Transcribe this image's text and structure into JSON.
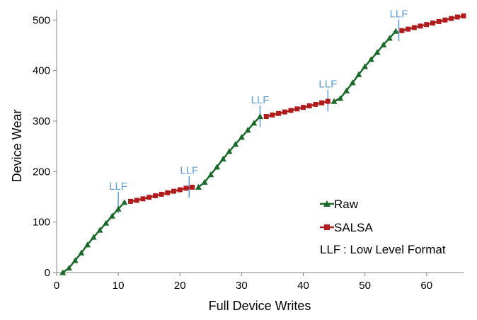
{
  "chart_data": {
    "type": "line",
    "xlabel": "Full Device Writes",
    "ylabel": "Device Wear",
    "xlim": [
      0,
      66
    ],
    "ylim": [
      0,
      520
    ],
    "x_ticks": [
      0,
      10,
      20,
      30,
      40,
      50,
      60
    ],
    "y_ticks": [
      0,
      100,
      200,
      300,
      400,
      500
    ],
    "grid": false,
    "legend_placement": "bottom-right",
    "colors": {
      "raw": "#1a6b2a",
      "salsa": "#b01c1c",
      "llf": "#5b9bd5",
      "axis": "#808080"
    },
    "series": [
      {
        "name": "Raw",
        "marker": "triangle",
        "segments": [
          {
            "x": [
              1,
              2,
              3,
              4,
              5,
              6,
              7,
              8,
              9,
              10,
              11
            ],
            "y": [
              0,
              9,
              24,
              39,
              55,
              70,
              84,
              98,
              112,
              126,
              139
            ]
          },
          {
            "x": [
              23,
              24,
              25,
              26,
              27,
              28,
              29,
              30,
              31,
              32,
              33
            ],
            "y": [
              169,
              179,
              194,
              209,
              225,
              240,
              254,
              268,
              282,
              296,
              309
            ]
          },
          {
            "x": [
              45,
              46,
              47,
              48,
              49,
              50,
              51,
              52,
              53,
              54,
              55
            ],
            "y": [
              339,
              345,
              360,
              376,
              392,
              408,
              422,
              436,
              451,
              464,
              478
            ]
          }
        ]
      },
      {
        "name": "SALSA",
        "marker": "square",
        "segments": [
          {
            "x": [
              12,
              13,
              14,
              15,
              16,
              17,
              18,
              19,
              20,
              21,
              22
            ],
            "y": [
              141,
              143,
              146,
              149,
              152,
              155,
              158,
              161,
              164,
              167,
              169
            ]
          },
          {
            "x": [
              34,
              35,
              36,
              37,
              38,
              39,
              40,
              41,
              42,
              43,
              44
            ],
            "y": [
              309,
              312,
              315,
              318,
              321,
              324,
              327,
              330,
              333,
              336,
              339
            ]
          },
          {
            "x": [
              56,
              57,
              58,
              59,
              60,
              61,
              62,
              63,
              64,
              65,
              66
            ],
            "y": [
              479,
              482,
              485,
              488,
              491,
              494,
              497,
              500,
              503,
              506,
              508
            ]
          }
        ]
      }
    ],
    "annotations": [
      {
        "text": "LLF",
        "x": 10,
        "y": 150,
        "y_top": 160,
        "y_bottom": 117
      },
      {
        "text": "LLF",
        "x": 21.5,
        "y": 181,
        "y_top": 191,
        "y_bottom": 148
      },
      {
        "text": "LLF",
        "x": 33,
        "y": 321,
        "y_top": 331,
        "y_bottom": 288
      },
      {
        "text": "LLF",
        "x": 44,
        "y": 352,
        "y_top": 362,
        "y_bottom": 319
      },
      {
        "text": "LLF",
        "x": 55.5,
        "y": 491,
        "y_top": 501,
        "y_bottom": 458
      }
    ],
    "legend": {
      "raw": "Raw",
      "salsa": "SALSA",
      "llf_key": "LLF",
      "llf_desc": ": Low Level Format"
    }
  }
}
